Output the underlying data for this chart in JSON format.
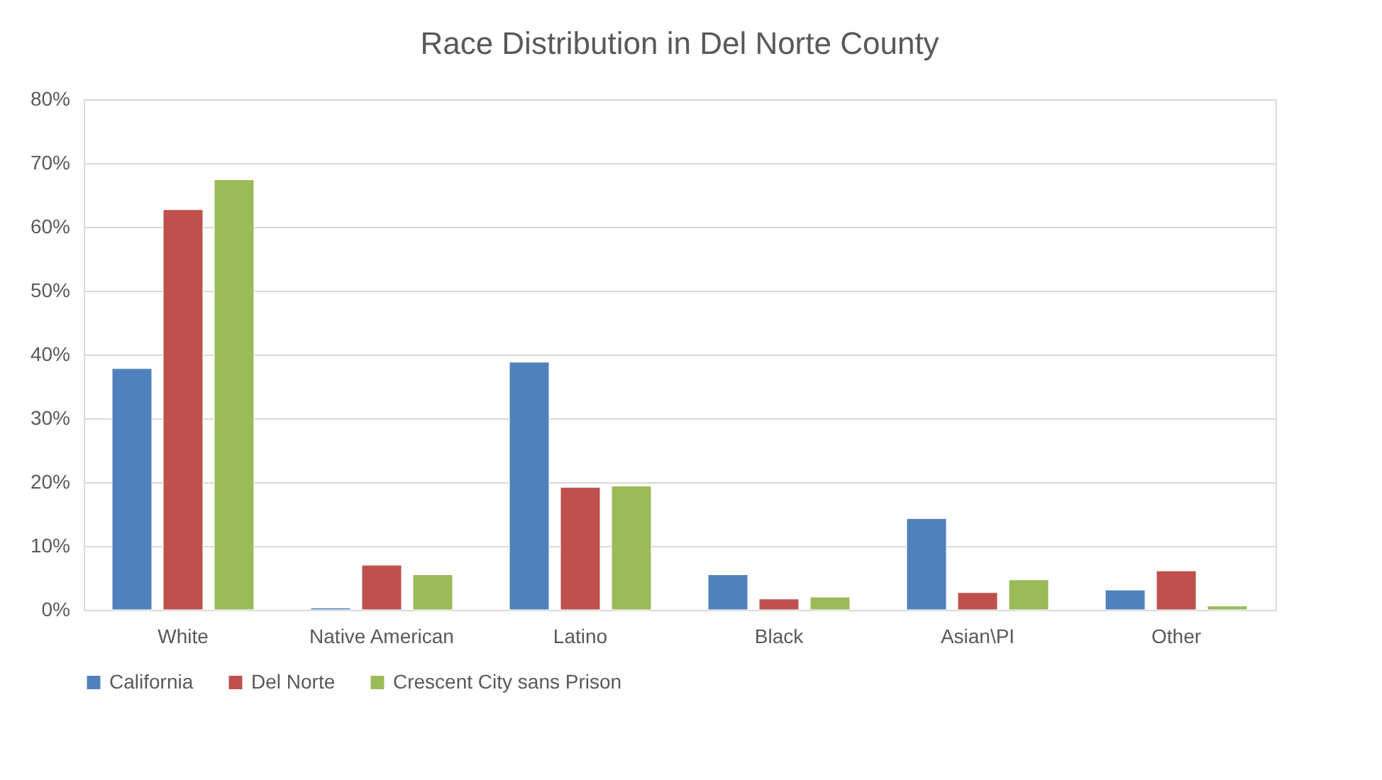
{
  "chart_data": {
    "type": "bar",
    "title": "Race Distribution in Del Norte County",
    "categories": [
      "White",
      "Native American",
      "Latino",
      "Black",
      "Asian\\PI",
      "Other"
    ],
    "series": [
      {
        "name": "California",
        "color": "#4f81bd",
        "values": [
          37.8,
          0.3,
          38.8,
          5.5,
          14.3,
          3.1
        ]
      },
      {
        "name": "Del Norte",
        "color": "#c0504d",
        "values": [
          62.7,
          7.0,
          19.2,
          1.7,
          2.7,
          6.1
        ]
      },
      {
        "name": "Crescent City sans Prison",
        "color": "#9bbb59",
        "values": [
          67.4,
          5.5,
          19.4,
          2.0,
          4.7,
          0.6
        ]
      }
    ],
    "ylim": [
      0,
      80
    ],
    "yticks": [
      {
        "value": 0,
        "label": "0%"
      },
      {
        "value": 10,
        "label": "10%"
      },
      {
        "value": 20,
        "label": "20%"
      },
      {
        "value": 30,
        "label": "30%"
      },
      {
        "value": 40,
        "label": "40%"
      },
      {
        "value": 50,
        "label": "50%"
      },
      {
        "value": 60,
        "label": "60%"
      },
      {
        "value": 70,
        "label": "70%"
      },
      {
        "value": 80,
        "label": "80%"
      }
    ],
    "grid": "y",
    "legend": "bottom"
  }
}
